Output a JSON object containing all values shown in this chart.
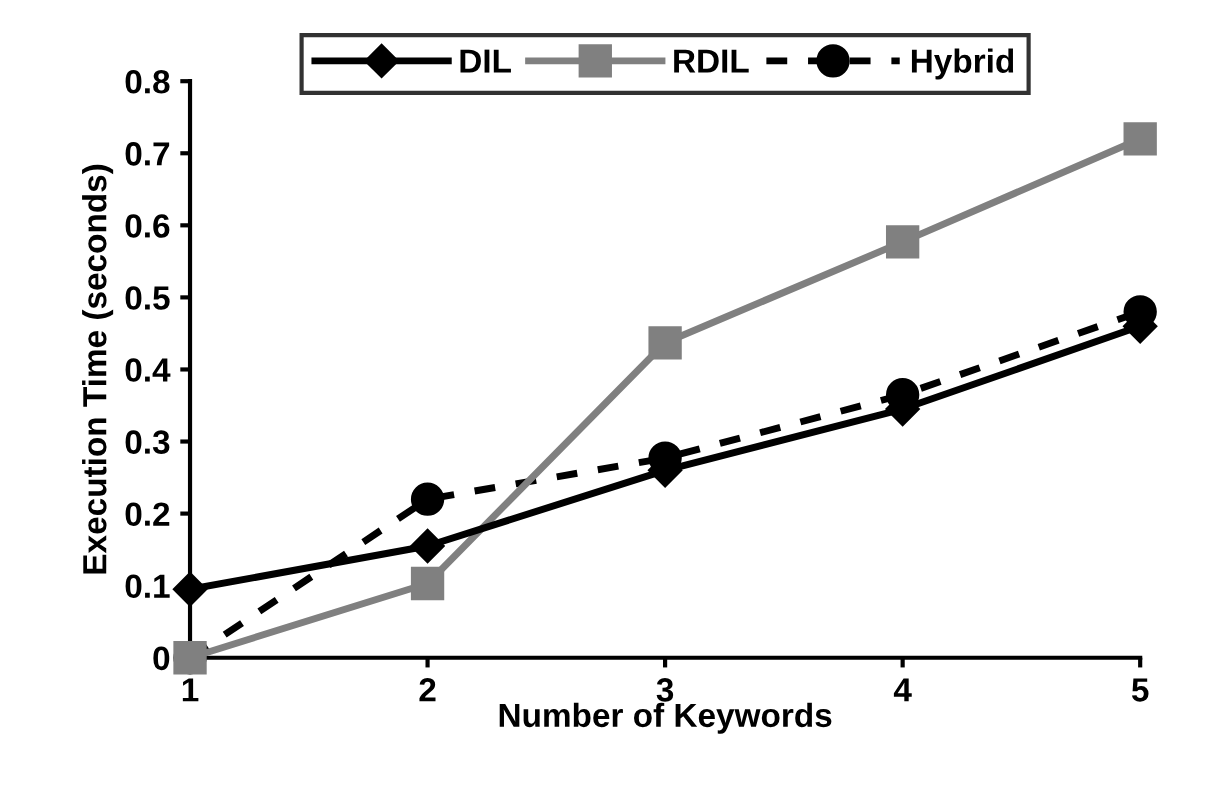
{
  "chart_data": {
    "type": "line",
    "xlabel": "Number of Keywords",
    "ylabel": "Execution Time (seconds)",
    "x": [
      1,
      2,
      3,
      4,
      5
    ],
    "xlim": [
      1,
      5
    ],
    "xticks": [
      1,
      2,
      3,
      4,
      5
    ],
    "ylim": [
      0,
      0.8
    ],
    "yticks": [
      0,
      0.1,
      0.2,
      0.3,
      0.4,
      0.5,
      0.6,
      0.7,
      0.8
    ],
    "series": [
      {
        "name": "DIL",
        "color": "#000000",
        "marker": "diamond",
        "line_style": "solid",
        "values": [
          0.095,
          0.155,
          0.26,
          0.345,
          0.46
        ]
      },
      {
        "name": "RDIL",
        "color": "#808080",
        "marker": "square",
        "line_style": "solid",
        "values": [
          0,
          0.103,
          0.437,
          0.577,
          0.72
        ]
      },
      {
        "name": "Hybrid",
        "color": "#000000",
        "marker": "circle",
        "line_style": "dashed",
        "values": [
          0,
          0.22,
          0.277,
          0.365,
          0.48
        ]
      }
    ],
    "grid": false,
    "legend": "top"
  }
}
